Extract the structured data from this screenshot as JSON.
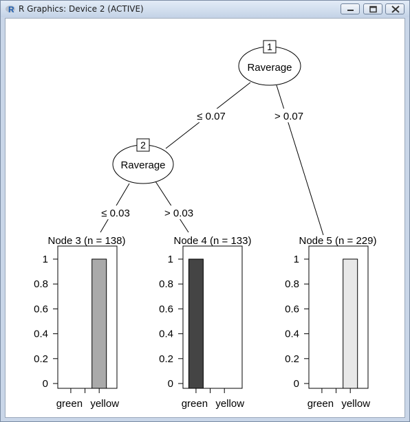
{
  "window": {
    "title": "R Graphics: Device 2 (ACTIVE)",
    "app_icon": "r-logo-icon",
    "controls": [
      "minimize-icon",
      "maximize-icon",
      "close-icon"
    ]
  },
  "tree": {
    "inner_nodes": [
      {
        "id": "1",
        "variable": "Raverage"
      },
      {
        "id": "2",
        "variable": "Raverage"
      }
    ],
    "edges": [
      {
        "label": "≤ 0.07"
      },
      {
        "label": "> 0.07"
      },
      {
        "label": "≤ 0.03"
      },
      {
        "label": "> 0.03"
      }
    ],
    "terminal_nodes": [
      {
        "title": "Node 3 (n = 138)",
        "values": {
          "green": 0,
          "yellow": 1
        },
        "fill": "#aaaaaa"
      },
      {
        "title": "Node 4 (n = 133)",
        "values": {
          "green": 1,
          "yellow": 0
        },
        "fill": "#444444"
      },
      {
        "title": "Node 5 (n = 229)",
        "values": {
          "green": 0,
          "yellow": 1
        },
        "fill": "#e8e8e8"
      }
    ],
    "axis_ticks": [
      "0",
      "0.2",
      "0.4",
      "0.6",
      "0.8",
      "1"
    ],
    "categories": [
      "green",
      "yellow"
    ]
  },
  "chart_data": [
    {
      "type": "bar",
      "title": "Node 3 (n = 138)",
      "categories": [
        "green",
        "yellow"
      ],
      "values": [
        0,
        1
      ],
      "ylim": [
        0,
        1
      ]
    },
    {
      "type": "bar",
      "title": "Node 4 (n = 133)",
      "categories": [
        "green",
        "yellow"
      ],
      "values": [
        1,
        0
      ],
      "ylim": [
        0,
        1
      ]
    },
    {
      "type": "bar",
      "title": "Node 5 (n = 229)",
      "categories": [
        "green",
        "yellow"
      ],
      "values": [
        0,
        1
      ],
      "ylim": [
        0,
        1
      ]
    }
  ]
}
